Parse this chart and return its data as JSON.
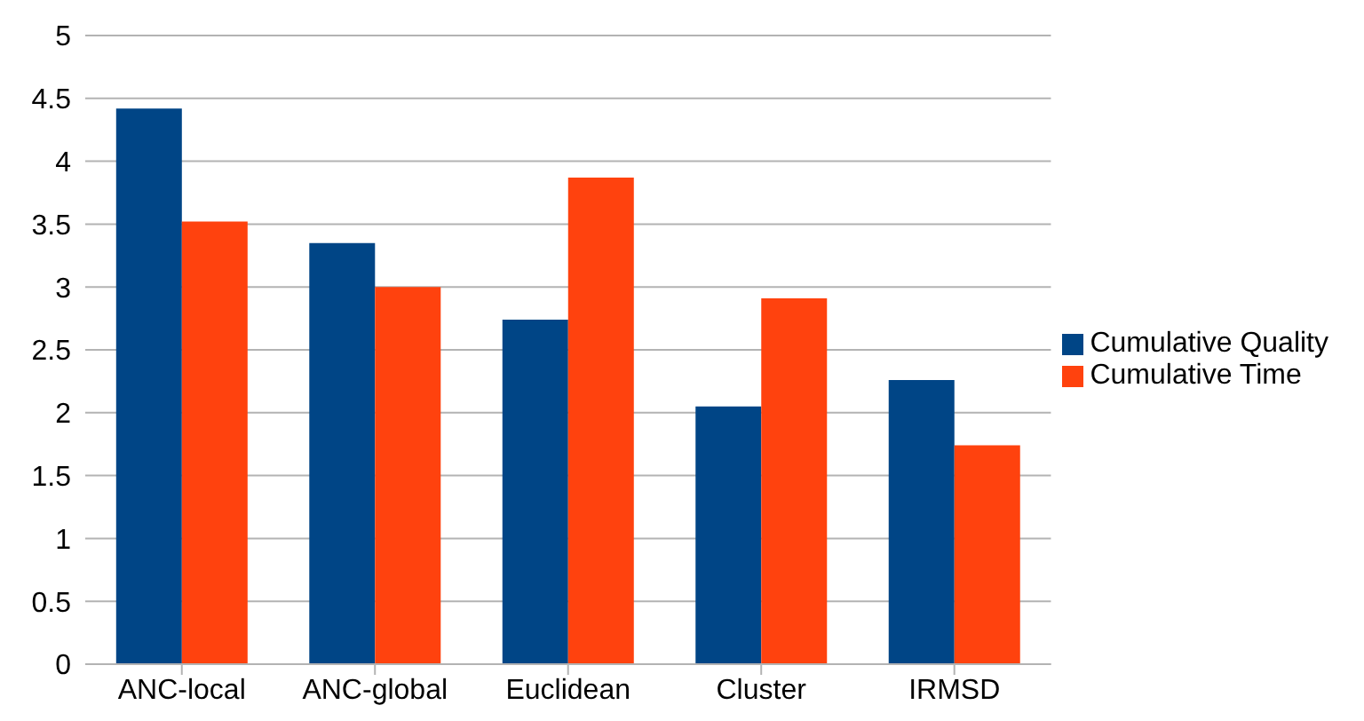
{
  "chart_data": {
    "type": "bar",
    "categories": [
      "ANC-local",
      "ANC-global",
      "Euclidean",
      "Cluster",
      "IRMSD"
    ],
    "series": [
      {
        "name": "Cumulative Quality",
        "color": "#004586",
        "values": [
          4.42,
          3.35,
          2.74,
          2.05,
          2.26
        ]
      },
      {
        "name": "Cumulative Time",
        "color": "#ff420e",
        "values": [
          3.52,
          3.0,
          3.87,
          2.91,
          1.74
        ]
      }
    ],
    "ylim": [
      0,
      5
    ],
    "yticks": [
      0,
      0.5,
      1,
      1.5,
      2,
      2.5,
      3,
      3.5,
      4,
      4.5,
      5
    ],
    "grid": "y",
    "legend": "right"
  }
}
